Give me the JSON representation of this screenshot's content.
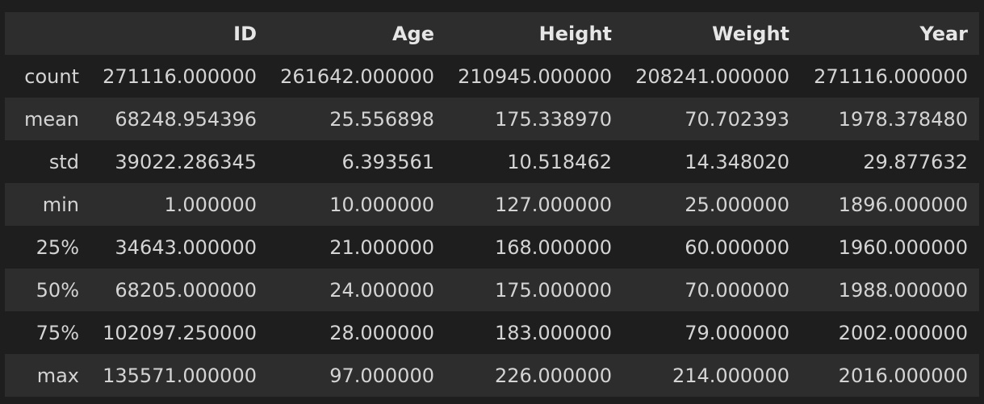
{
  "table": {
    "index_header": "",
    "columns": [
      "ID",
      "Age",
      "Height",
      "Weight",
      "Year"
    ],
    "rows": [
      {
        "label": "count",
        "values": [
          "271116.000000",
          "261642.000000",
          "210945.000000",
          "208241.000000",
          "271116.000000"
        ]
      },
      {
        "label": "mean",
        "values": [
          "68248.954396",
          "25.556898",
          "175.338970",
          "70.702393",
          "1978.378480"
        ]
      },
      {
        "label": "std",
        "values": [
          "39022.286345",
          "6.393561",
          "10.518462",
          "14.348020",
          "29.877632"
        ]
      },
      {
        "label": "min",
        "values": [
          "1.000000",
          "10.000000",
          "127.000000",
          "25.000000",
          "1896.000000"
        ]
      },
      {
        "label": "25%",
        "values": [
          "34643.000000",
          "21.000000",
          "168.000000",
          "60.000000",
          "1960.000000"
        ]
      },
      {
        "label": "50%",
        "values": [
          "68205.000000",
          "24.000000",
          "175.000000",
          "70.000000",
          "1988.000000"
        ]
      },
      {
        "label": "75%",
        "values": [
          "102097.250000",
          "28.000000",
          "183.000000",
          "79.000000",
          "2002.000000"
        ]
      },
      {
        "label": "max",
        "values": [
          "135571.000000",
          "97.000000",
          "226.000000",
          "214.000000",
          "2016.000000"
        ]
      }
    ]
  },
  "colors": {
    "background": "#1e1e1e",
    "row_stripe": "#2d2d2d",
    "text": "#d4d4d4"
  }
}
